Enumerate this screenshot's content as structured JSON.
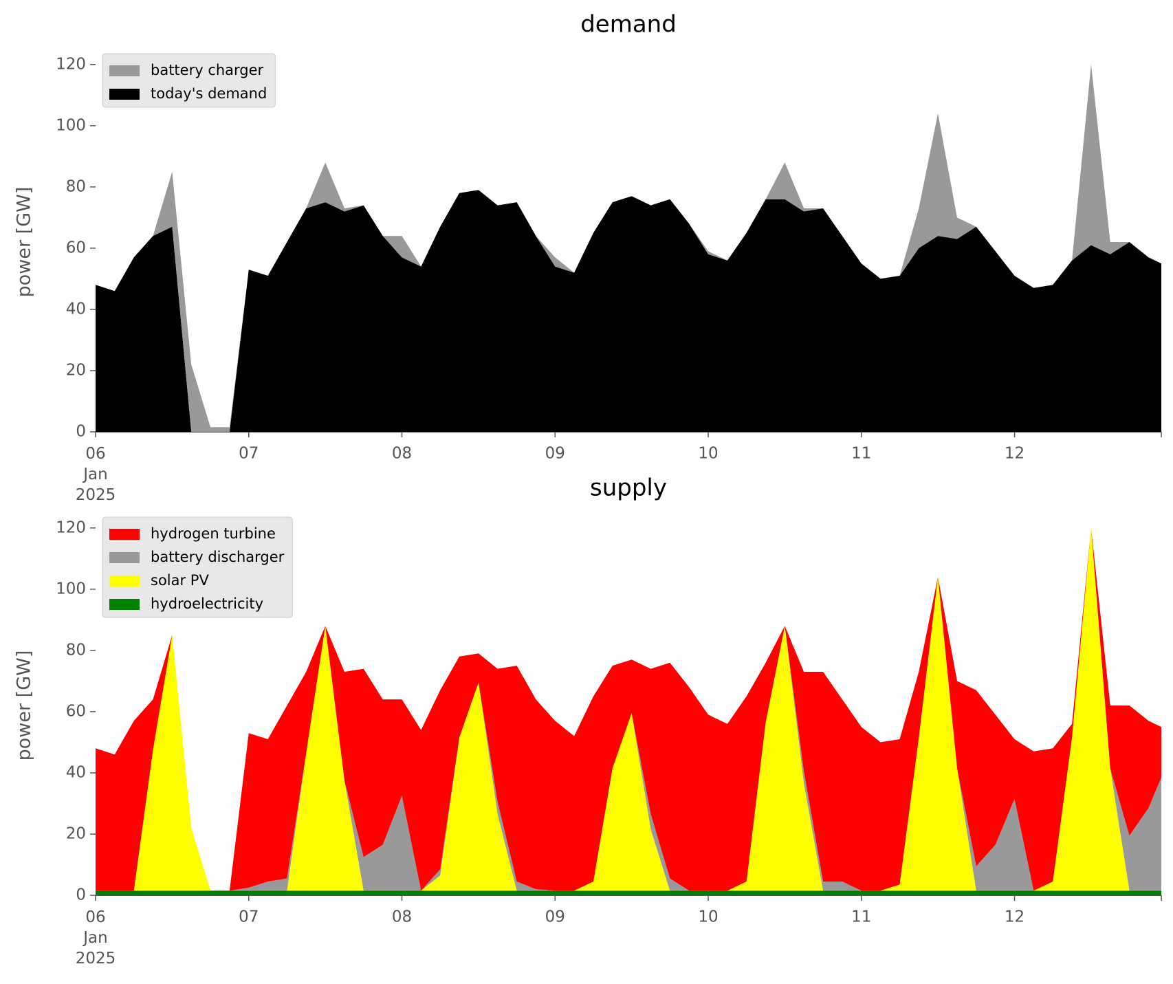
{
  "chart_data": [
    {
      "type": "area",
      "stacked": true,
      "title": "demand",
      "ylabel": "power [GW]",
      "legend": "upper left",
      "x": [
        "2025-01-06T00:00",
        "2025-01-06T03:00",
        "2025-01-06T06:00",
        "2025-01-06T09:00",
        "2025-01-06T12:00",
        "2025-01-06T15:00",
        "2025-01-06T18:00",
        "2025-01-06T21:00",
        "2025-01-07T00:00",
        "2025-01-07T03:00",
        "2025-01-07T06:00",
        "2025-01-07T09:00",
        "2025-01-07T12:00",
        "2025-01-07T15:00",
        "2025-01-07T18:00",
        "2025-01-07T21:00",
        "2025-01-08T00:00",
        "2025-01-08T03:00",
        "2025-01-08T06:00",
        "2025-01-08T09:00",
        "2025-01-08T12:00",
        "2025-01-08T15:00",
        "2025-01-08T18:00",
        "2025-01-08T21:00",
        "2025-01-09T00:00",
        "2025-01-09T03:00",
        "2025-01-09T06:00",
        "2025-01-09T09:00",
        "2025-01-09T12:00",
        "2025-01-09T15:00",
        "2025-01-09T18:00",
        "2025-01-09T21:00",
        "2025-01-10T00:00",
        "2025-01-10T03:00",
        "2025-01-10T06:00",
        "2025-01-10T09:00",
        "2025-01-10T12:00",
        "2025-01-10T15:00",
        "2025-01-10T18:00",
        "2025-01-10T21:00",
        "2025-01-11T00:00",
        "2025-01-11T03:00",
        "2025-01-11T06:00",
        "2025-01-11T09:00",
        "2025-01-11T12:00",
        "2025-01-11T15:00",
        "2025-01-11T18:00",
        "2025-01-11T21:00",
        "2025-01-12T00:00",
        "2025-01-12T03:00",
        "2025-01-12T06:00",
        "2025-01-12T09:00",
        "2025-01-12T12:00",
        "2025-01-12T15:00",
        "2025-01-12T18:00",
        "2025-01-12T21:00",
        "2025-01-12T23:00"
      ],
      "series": [
        {
          "name": "today's demand",
          "color": "#000000",
          "values": [
            48,
            46,
            57,
            64,
            67,
            0,
            0,
            0,
            53,
            51,
            62,
            73,
            75,
            72,
            74,
            64,
            57,
            54,
            67,
            78,
            79,
            74,
            75,
            64,
            54,
            52,
            65,
            75,
            77,
            74,
            76,
            68,
            58,
            56,
            65,
            76,
            76,
            72,
            73,
            64,
            55,
            50,
            51,
            60,
            64,
            63,
            67,
            59,
            51,
            47,
            48,
            56,
            61,
            58,
            62,
            57,
            55
          ]
        },
        {
          "name": "battery charger",
          "color": "#999999",
          "values": [
            0,
            0,
            0,
            0,
            18,
            22,
            1.5,
            1.5,
            0,
            0,
            0,
            0,
            13,
            1,
            0,
            0,
            7,
            0,
            0,
            0,
            0,
            0,
            0,
            0,
            3,
            0,
            0,
            0,
            0,
            0,
            0,
            0,
            1,
            0,
            0,
            0,
            12,
            1,
            0,
            0,
            0,
            0,
            0,
            13,
            40,
            7,
            0,
            0,
            0,
            0,
            0,
            0,
            59,
            4,
            0,
            0,
            0
          ]
        }
      ],
      "xlim": [
        "2025-01-06T00:00",
        "2025-01-12T23:00"
      ],
      "xticks": [
        {
          "value": "2025-01-06T00:00",
          "label": "06\nJan\n2025"
        },
        {
          "value": "2025-01-07T00:00",
          "label": "07"
        },
        {
          "value": "2025-01-08T00:00",
          "label": "08"
        },
        {
          "value": "2025-01-09T00:00",
          "label": "09"
        },
        {
          "value": "2025-01-10T00:00",
          "label": "10"
        },
        {
          "value": "2025-01-11T00:00",
          "label": "11"
        },
        {
          "value": "2025-01-12T00:00",
          "label": "12"
        }
      ],
      "ylim": [
        0,
        124
      ],
      "yticks": [
        0,
        20,
        40,
        60,
        80,
        100,
        120
      ]
    },
    {
      "type": "area",
      "stacked": true,
      "title": "supply",
      "ylabel": "power [GW]",
      "legend": "upper left",
      "x": [
        "2025-01-06T00:00",
        "2025-01-06T03:00",
        "2025-01-06T06:00",
        "2025-01-06T09:00",
        "2025-01-06T12:00",
        "2025-01-06T15:00",
        "2025-01-06T18:00",
        "2025-01-06T21:00",
        "2025-01-07T00:00",
        "2025-01-07T03:00",
        "2025-01-07T06:00",
        "2025-01-07T09:00",
        "2025-01-07T12:00",
        "2025-01-07T15:00",
        "2025-01-07T18:00",
        "2025-01-07T21:00",
        "2025-01-08T00:00",
        "2025-01-08T03:00",
        "2025-01-08T06:00",
        "2025-01-08T09:00",
        "2025-01-08T12:00",
        "2025-01-08T15:00",
        "2025-01-08T18:00",
        "2025-01-08T21:00",
        "2025-01-09T00:00",
        "2025-01-09T03:00",
        "2025-01-09T06:00",
        "2025-01-09T09:00",
        "2025-01-09T12:00",
        "2025-01-09T15:00",
        "2025-01-09T18:00",
        "2025-01-09T21:00",
        "2025-01-10T00:00",
        "2025-01-10T03:00",
        "2025-01-10T06:00",
        "2025-01-10T09:00",
        "2025-01-10T12:00",
        "2025-01-10T15:00",
        "2025-01-10T18:00",
        "2025-01-10T21:00",
        "2025-01-11T00:00",
        "2025-01-11T03:00",
        "2025-01-11T06:00",
        "2025-01-11T09:00",
        "2025-01-11T12:00",
        "2025-01-11T15:00",
        "2025-01-11T18:00",
        "2025-01-11T21:00",
        "2025-01-12T00:00",
        "2025-01-12T03:00",
        "2025-01-12T06:00",
        "2025-01-12T09:00",
        "2025-01-12T12:00",
        "2025-01-12T15:00",
        "2025-01-12T18:00",
        "2025-01-12T21:00",
        "2025-01-12T23:00"
      ],
      "series": [
        {
          "name": "hydroelectricity",
          "color": "#008000",
          "values": [
            1.5,
            1.5,
            1.5,
            1.5,
            1.5,
            1.5,
            1.5,
            1.5,
            1.5,
            1.5,
            1.5,
            1.5,
            1.5,
            1.5,
            1.5,
            1.5,
            1.5,
            1.5,
            1.5,
            1.5,
            1.5,
            1.5,
            1.5,
            1.5,
            1.5,
            1.5,
            1.5,
            1.5,
            1.5,
            1.5,
            1.5,
            1.5,
            1.5,
            1.5,
            1.5,
            1.5,
            1.5,
            1.5,
            1.5,
            1.5,
            1.5,
            1.5,
            1.5,
            1.5,
            1.5,
            1.5,
            1.5,
            1.5,
            1.5,
            1.5,
            1.5,
            1.5,
            1.5,
            1.5,
            1.5,
            1.5,
            1.5
          ]
        },
        {
          "name": "solar PV",
          "color": "#ffff00",
          "values": [
            0,
            0,
            0,
            46,
            83.5,
            20.5,
            0,
            0,
            0,
            0,
            0,
            45,
            86.5,
            36,
            0,
            0,
            0,
            0,
            5,
            50,
            68,
            25,
            0,
            0,
            0,
            0,
            3,
            40,
            58,
            20,
            0,
            0,
            0,
            0,
            3,
            55,
            86.5,
            35,
            0,
            0,
            0,
            0,
            2,
            50,
            102.5,
            40,
            0,
            0,
            0,
            0,
            3,
            50,
            118.5,
            40,
            0,
            0,
            0
          ]
        },
        {
          "name": "battery discharger",
          "color": "#999999",
          "values": [
            0,
            0,
            0,
            0,
            0,
            0,
            0,
            0,
            1,
            3,
            4,
            0,
            0,
            0,
            11,
            15,
            31,
            0,
            2,
            0,
            0,
            4,
            3,
            0.5,
            0,
            0,
            0,
            0,
            0,
            5,
            4,
            0,
            0,
            0,
            0,
            0,
            0,
            4,
            3,
            3,
            0,
            0,
            0,
            0,
            0,
            0,
            8,
            15,
            30,
            0,
            0,
            0,
            0,
            0,
            18,
            27,
            37
          ]
        },
        {
          "name": "hydrogen turbine",
          "color": "#ff0000",
          "values": [
            46.5,
            44.5,
            55.5,
            16.5,
            0,
            0,
            0,
            0,
            50.5,
            46.5,
            56.5,
            26.5,
            0,
            35.5,
            61.5,
            47.5,
            31.5,
            52.5,
            58.5,
            26.5,
            9.5,
            43.5,
            70.5,
            62,
            55.5,
            50.5,
            60.5,
            33.5,
            17.5,
            47.5,
            70.5,
            66.5,
            57.5,
            54.5,
            60.5,
            19.5,
            0,
            32.5,
            68.5,
            59.5,
            53.5,
            48.5,
            47.5,
            21.5,
            0,
            28.5,
            57.5,
            42.5,
            19.5,
            45.5,
            43.5,
            4.5,
            0,
            20.5,
            42.5,
            28.5,
            16.5
          ]
        }
      ],
      "xlim": [
        "2025-01-06T00:00",
        "2025-01-12T23:00"
      ],
      "xticks": [
        {
          "value": "2025-01-06T00:00",
          "label": "06\nJan\n2025"
        },
        {
          "value": "2025-01-07T00:00",
          "label": "07"
        },
        {
          "value": "2025-01-08T00:00",
          "label": "08"
        },
        {
          "value": "2025-01-09T00:00",
          "label": "09"
        },
        {
          "value": "2025-01-10T00:00",
          "label": "10"
        },
        {
          "value": "2025-01-11T00:00",
          "label": "11"
        },
        {
          "value": "2025-01-12T00:00",
          "label": "12"
        }
      ],
      "ylim": [
        0,
        124
      ],
      "yticks": [
        0,
        20,
        40,
        60,
        80,
        100,
        120
      ]
    }
  ]
}
